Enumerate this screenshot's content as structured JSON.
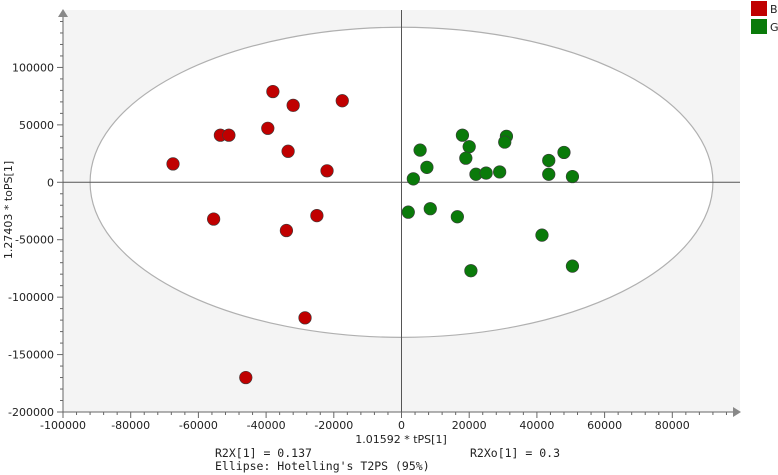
{
  "chart_data": {
    "type": "scatter",
    "title": "",
    "xlabel": "1.01592 * tPS[1]",
    "ylabel": "1.27403 * toPS[1]",
    "xlim": [
      -100000,
      100000
    ],
    "ylim": [
      -200000,
      150000
    ],
    "x_ticks": [
      -100000,
      -80000,
      -60000,
      -40000,
      -20000,
      0,
      20000,
      40000,
      60000,
      80000
    ],
    "y_ticks": [
      -200000,
      -150000,
      -100000,
      -50000,
      0,
      50000,
      100000
    ],
    "grid": false,
    "legend_position": "top-right",
    "ellipse": {
      "center": [
        0,
        0
      ],
      "semi_x": 92000,
      "semi_y": 135000
    },
    "series": [
      {
        "name": "B",
        "color": "#c00000",
        "points": [
          [
            -38000,
            79000
          ],
          [
            -17500,
            71000
          ],
          [
            -32000,
            67000
          ],
          [
            -53500,
            41000
          ],
          [
            -51000,
            41000
          ],
          [
            -39500,
            47000
          ],
          [
            -33500,
            27000
          ],
          [
            -67500,
            16000
          ],
          [
            -22000,
            10000
          ],
          [
            -55500,
            -32000
          ],
          [
            -25000,
            -29000
          ],
          [
            -34000,
            -42000
          ],
          [
            -28500,
            -118000
          ],
          [
            -46000,
            -170000
          ]
        ]
      },
      {
        "name": "G",
        "color": "#0a7a0a",
        "points": [
          [
            18000,
            41000
          ],
          [
            31000,
            40000
          ],
          [
            5500,
            28000
          ],
          [
            20000,
            31000
          ],
          [
            30500,
            35000
          ],
          [
            48000,
            26000
          ],
          [
            19000,
            21000
          ],
          [
            43500,
            19000
          ],
          [
            7500,
            13000
          ],
          [
            22000,
            7000
          ],
          [
            25000,
            8000
          ],
          [
            29000,
            9000
          ],
          [
            43500,
            7000
          ],
          [
            50500,
            5000
          ],
          [
            3500,
            3000
          ],
          [
            2000,
            -26000
          ],
          [
            8500,
            -23000
          ],
          [
            16500,
            -30000
          ],
          [
            41500,
            -46000
          ],
          [
            50500,
            -73000
          ],
          [
            20500,
            -77000
          ]
        ]
      }
    ],
    "footer": {
      "r2x": "R2X[1] = 0.137",
      "r2xo": "R2Xo[1] = 0.3",
      "ellipse": "Ellipse: Hotelling's T2PS (95%)"
    }
  }
}
